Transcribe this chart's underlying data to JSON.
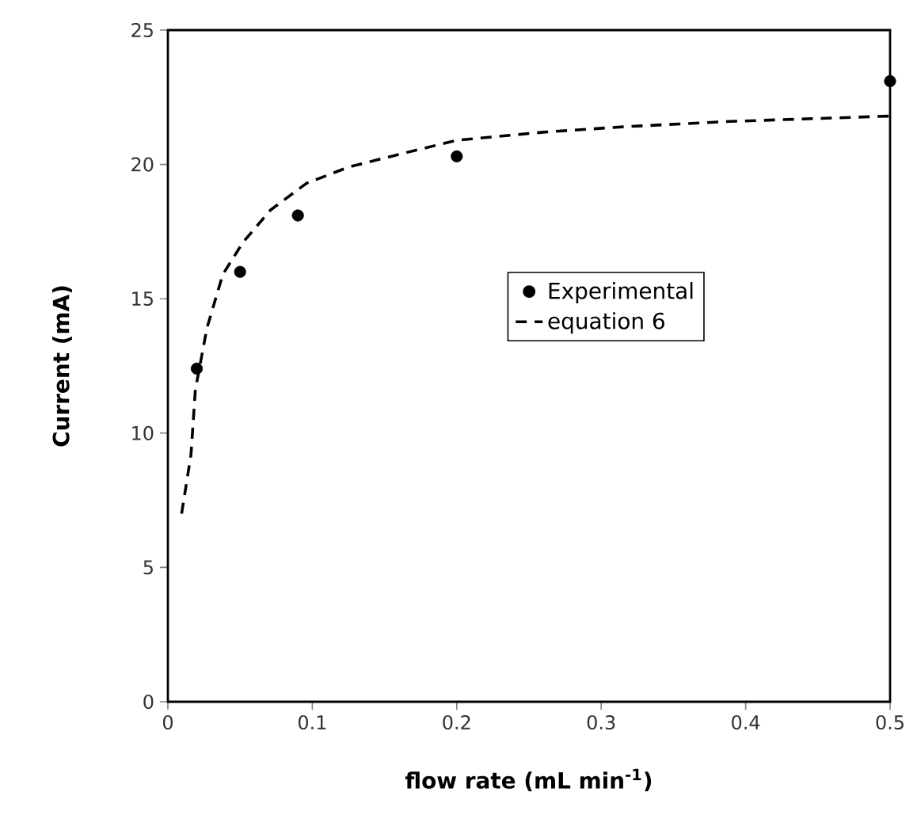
{
  "chart_data": {
    "type": "scatter",
    "xlabel": "flow rate (mL min$^{-1}$)",
    "ylabel": "Current (mA)",
    "xlim": [
      0,
      0.5
    ],
    "ylim": [
      0,
      25
    ],
    "xticks": [
      0,
      0.1,
      0.2,
      0.3,
      0.4,
      0.5
    ],
    "yticks": [
      0,
      5,
      10,
      15,
      20,
      25
    ],
    "grid": false,
    "legend": "right",
    "series": [
      {
        "name": "Experimental",
        "marker": "circle",
        "color": "#000000",
        "x": [
          0.02,
          0.05,
          0.09,
          0.2,
          0.5
        ],
        "values": [
          12.4,
          16.0,
          18.1,
          20.3,
          23.1
        ]
      },
      {
        "name": "equation 6",
        "type": "line",
        "marker": "none",
        "line_style": "dashed",
        "color": "#000000",
        "x": [
          0.0095,
          0.016,
          0.019,
          0.027,
          0.038,
          0.052,
          0.071,
          0.096,
          0.125,
          0.162,
          0.2,
          0.26,
          0.315,
          0.389,
          0.5
        ],
        "values": [
          7.0,
          9.2,
          11.6,
          13.9,
          15.9,
          17.1,
          18.3,
          19.3,
          19.9,
          20.4,
          20.9,
          21.2,
          21.4,
          21.6,
          21.8
        ]
      }
    ]
  }
}
